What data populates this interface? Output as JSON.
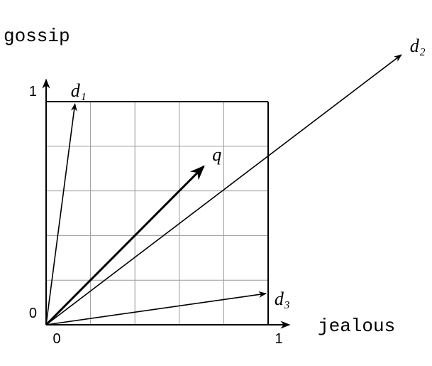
{
  "chart_data": {
    "type": "vector",
    "xlabel": "jealous",
    "ylabel": "gossip",
    "xlim": [
      0,
      1
    ],
    "ylim": [
      0,
      1
    ],
    "xticks": [
      0,
      1
    ],
    "yticks": [
      0,
      1
    ],
    "xgrid": [
      0.2,
      0.4,
      0.6,
      0.8
    ],
    "ygrid": [
      0.2,
      0.4,
      0.6,
      0.8
    ],
    "series": [
      {
        "name": "d₁",
        "color": "#000000",
        "x": 0.13,
        "y": 0.99
      },
      {
        "name": "d₂",
        "color": "#000000",
        "x": 1.6,
        "y": 1.21
      },
      {
        "name": "d₃",
        "color": "#000000",
        "x": 0.99,
        "y": 0.14
      },
      {
        "name": "q",
        "color": "#000000",
        "x": 0.71,
        "y": 0.71
      }
    ]
  }
}
